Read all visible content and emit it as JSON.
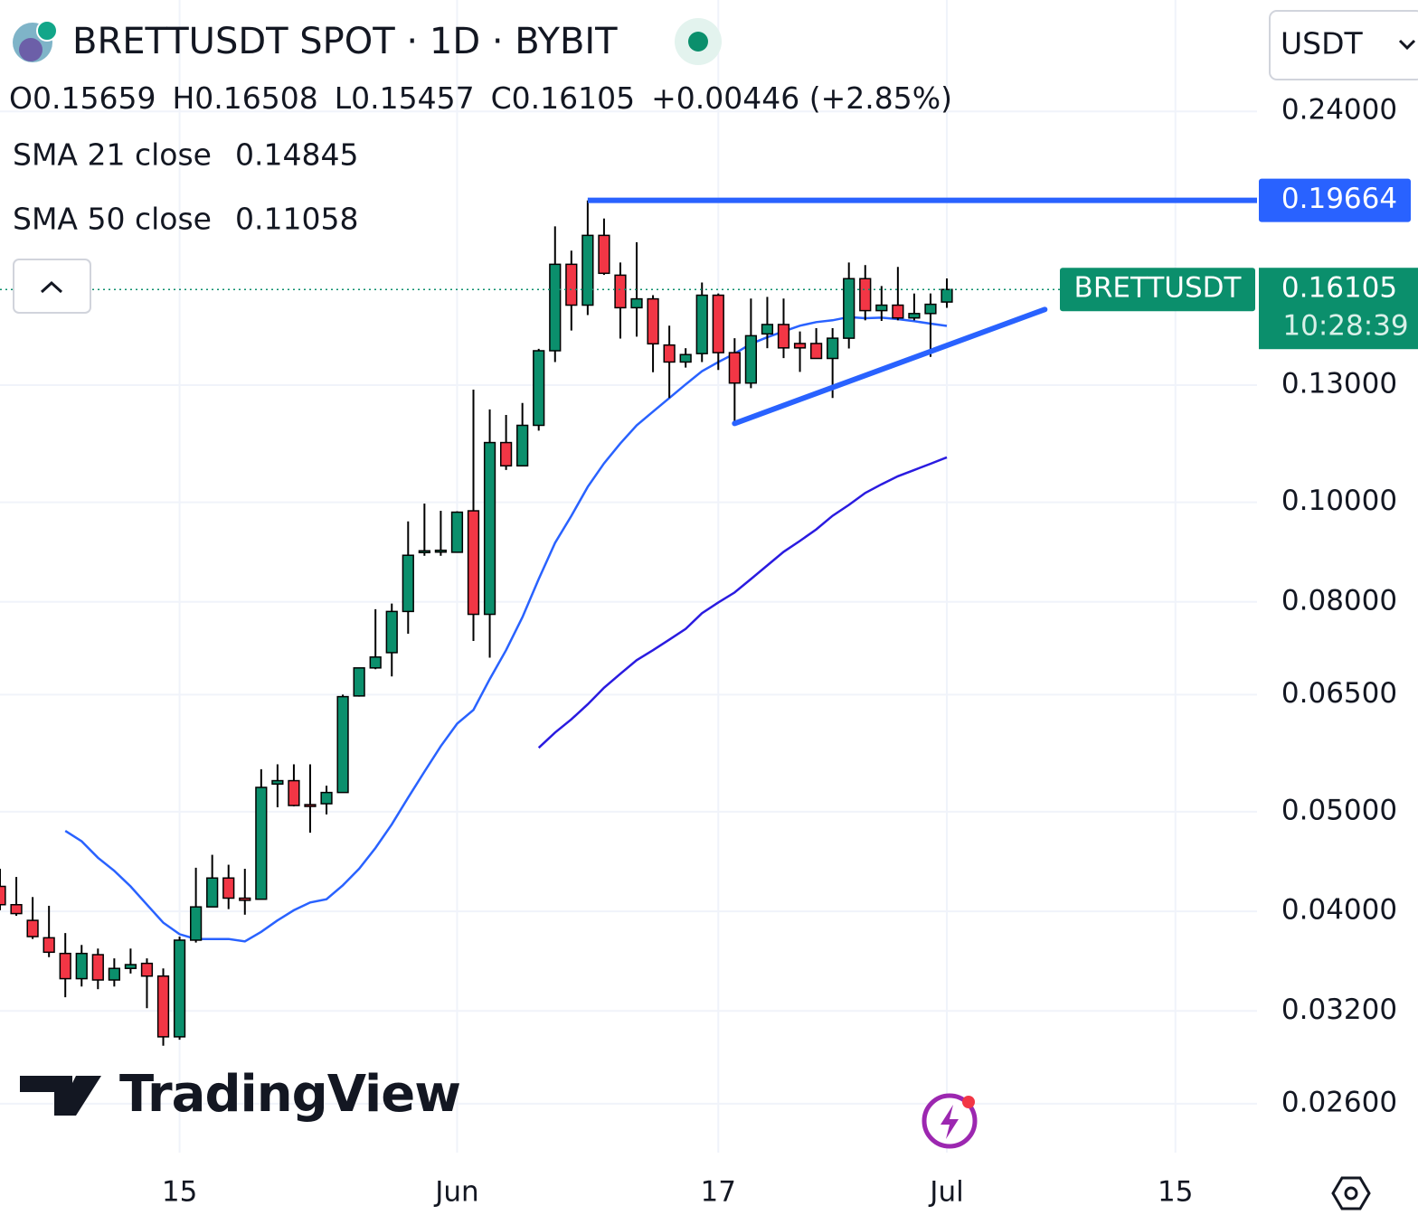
{
  "chart_data": {
    "type": "candlestick",
    "title": "BRETTUSDT SPOT · 1D · BYBIT",
    "ohlc_labels": [
      "O",
      "H",
      "L",
      "C"
    ],
    "change_label": "+0.00446 (+2.85%)",
    "currency": "USDT",
    "symbol_tag": "BRETTUSDT",
    "countdown": "10:28:39",
    "watermark": "TradingView",
    "log_scale": true,
    "grid": true,
    "up_color": "#0b8f6c",
    "down_color": "#f23645",
    "x": [
      "May 4",
      "May 5",
      "May 6",
      "May 7",
      "May 8",
      "May 9",
      "May 10",
      "May 11",
      "May 12",
      "May 13",
      "May 14",
      "May 15",
      "May 16",
      "May 17",
      "May 18",
      "May 19",
      "May 20",
      "May 21",
      "May 22",
      "May 23",
      "May 24",
      "May 25",
      "May 26",
      "May 27",
      "May 28",
      "May 29",
      "May 30",
      "May 31",
      "Jun 1",
      "Jun 2",
      "Jun 3",
      "Jun 4",
      "Jun 5",
      "Jun 6",
      "Jun 7",
      "Jun 8",
      "Jun 9",
      "Jun 10",
      "Jun 11",
      "Jun 12",
      "Jun 13",
      "Jun 14",
      "Jun 15",
      "Jun 16",
      "Jun 17",
      "Jun 18",
      "Jun 19",
      "Jun 20",
      "Jun 21",
      "Jun 22",
      "Jun 23",
      "Jun 24",
      "Jun 25",
      "Jun 26",
      "Jun 27",
      "Jun 28",
      "Jun 29",
      "Jun 30",
      "Jul 1"
    ],
    "open": [
      0.0423,
      0.0406,
      0.0392,
      0.0377,
      0.0364,
      0.0344,
      0.0363,
      0.0343,
      0.0352,
      0.0356,
      0.0346,
      0.0302,
      0.0375,
      0.0404,
      0.0431,
      0.0412,
      0.0411,
      0.0532,
      0.0536,
      0.0508,
      0.0509,
      0.0522,
      0.0648,
      0.069,
      0.0714,
      0.0783,
      0.0894,
      0.0895,
      0.0894,
      0.0981,
      0.0778,
      0.1143,
      0.1085,
      0.1188,
      0.1404,
      0.1704,
      0.1555,
      0.1818,
      0.1663,
      0.1546,
      0.1577,
      0.1422,
      0.1369,
      0.1395,
      0.159,
      0.1398,
      0.1306,
      0.1458,
      0.1489,
      0.1427,
      0.1427,
      0.138,
      0.1444,
      0.165,
      0.1536,
      0.1555,
      0.1511,
      0.1526,
      0.15659
    ],
    "high": [
      0.044,
      0.0432,
      0.0413,
      0.0405,
      0.0381,
      0.0371,
      0.0368,
      0.036,
      0.0368,
      0.036,
      0.0352,
      0.0378,
      0.0441,
      0.0454,
      0.0444,
      0.044,
      0.055,
      0.0556,
      0.0556,
      0.0556,
      0.053,
      0.065,
      0.0688,
      0.0787,
      0.0797,
      0.0958,
      0.0997,
      0.0981,
      0.098,
      0.1287,
      0.1231,
      0.1216,
      0.1249,
      0.141,
      0.1855,
      0.1757,
      0.1966,
      0.1888,
      0.1711,
      0.179,
      0.159,
      0.1485,
      0.1412,
      0.1636,
      0.1596,
      0.1444,
      0.1578,
      0.1584,
      0.1578,
      0.1466,
      0.1477,
      0.1477,
      0.1711,
      0.1701,
      0.1623,
      0.1694,
      0.1596,
      0.1596,
      0.16508
    ],
    "low": [
      0.0401,
      0.0396,
      0.0376,
      0.0361,
      0.033,
      0.0338,
      0.0336,
      0.0338,
      0.0348,
      0.0322,
      0.0296,
      0.03,
      0.0373,
      0.0404,
      0.0402,
      0.0397,
      0.0411,
      0.0505,
      0.0506,
      0.0477,
      0.0497,
      0.0522,
      0.0647,
      0.0688,
      0.0677,
      0.0745,
      0.0887,
      0.0887,
      0.0894,
      0.0733,
      0.0706,
      0.1075,
      0.1085,
      0.1174,
      0.1369,
      0.1469,
      0.1521,
      0.1664,
      0.1443,
      0.1449,
      0.1338,
      0.1263,
      0.1352,
      0.1369,
      0.1345,
      0.1188,
      0.1291,
      0.1412,
      0.1381,
      0.1339,
      0.1379,
      0.1263,
      0.1411,
      0.1503,
      0.1501,
      0.1503,
      0.1503,
      0.1385,
      0.15457
    ],
    "close": [
      0.0406,
      0.0398,
      0.0378,
      0.0365,
      0.0344,
      0.0364,
      0.0343,
      0.0352,
      0.0355,
      0.0346,
      0.0302,
      0.0375,
      0.0404,
      0.0431,
      0.0412,
      0.041,
      0.0528,
      0.0536,
      0.0507,
      0.0506,
      0.0522,
      0.0647,
      0.069,
      0.0707,
      0.0783,
      0.0888,
      0.0897,
      0.0898,
      0.0978,
      0.0778,
      0.1143,
      0.1085,
      0.1188,
      0.1404,
      0.1704,
      0.1555,
      0.1818,
      0.167,
      0.1546,
      0.1577,
      0.1426,
      0.1369,
      0.1392,
      0.159,
      0.1398,
      0.1306,
      0.1452,
      0.1489,
      0.1413,
      0.1413,
      0.138,
      0.1444,
      0.165,
      0.1536,
      0.1555,
      0.1511,
      0.1526,
      0.1558,
      0.16105
    ],
    "series": [
      {
        "name": "SMA 21 close",
        "color": "#2962ff",
        "values": [
          null,
          null,
          null,
          null,
          0.0479,
          0.0468,
          0.0451,
          0.0438,
          0.0423,
          0.0406,
          0.039,
          0.038,
          0.0376,
          0.0376,
          0.0376,
          0.0374,
          0.0382,
          0.0392,
          0.0401,
          0.0408,
          0.0411,
          0.0424,
          0.044,
          0.0461,
          0.0486,
          0.0516,
          0.0547,
          0.0579,
          0.0609,
          0.0628,
          0.0673,
          0.0718,
          0.0773,
          0.0842,
          0.0913,
          0.097,
          0.1035,
          0.1091,
          0.1141,
          0.1188,
          0.1225,
          0.1263,
          0.1302,
          0.1341,
          0.1369,
          0.1395,
          0.1426,
          0.1447,
          0.1466,
          0.1485,
          0.1497,
          0.1503,
          0.1514,
          0.151,
          0.1512,
          0.1507,
          0.15,
          0.1492,
          0.14845
        ]
      },
      {
        "name": "SMA 50 close",
        "color": "#2a1be0",
        "values": [
          null,
          null,
          null,
          null,
          null,
          null,
          null,
          null,
          null,
          null,
          null,
          null,
          null,
          null,
          null,
          null,
          null,
          null,
          null,
          null,
          null,
          null,
          null,
          null,
          null,
          null,
          null,
          null,
          null,
          null,
          null,
          null,
          null,
          0.0577,
          0.0597,
          0.0615,
          0.0636,
          0.066,
          0.0681,
          0.0702,
          0.0718,
          0.0735,
          0.0753,
          0.078,
          0.0799,
          0.0817,
          0.0842,
          0.0868,
          0.0895,
          0.0917,
          0.0941,
          0.097,
          0.0994,
          0.1021,
          0.1041,
          0.106,
          0.1075,
          0.109,
          0.11058
        ]
      }
    ],
    "annotations": [
      {
        "type": "hline",
        "x": "Jun 9",
        "value": 0.19664,
        "color": "#2962ff"
      },
      {
        "type": "trendline",
        "x": [
          "Jun 18",
          "Jul 7"
        ],
        "values": [
          0.1193,
          0.154
        ],
        "color": "#2962ff"
      }
    ],
    "xlim": [
      "May 4",
      "Jul 20"
    ],
    "ylim": [
      0.0233,
      0.308
    ],
    "xticks": [
      {
        "value": "May 15",
        "label": "15"
      },
      {
        "value": "Jun 1",
        "label": "Jun"
      },
      {
        "value": "Jun 17",
        "label": "17"
      },
      {
        "value": "Jul 1",
        "label": "Jul"
      },
      {
        "value": "Jul 15",
        "label": "15"
      }
    ],
    "yticks": [
      {
        "value": 0.24,
        "label": "0.24000"
      },
      {
        "value": 0.13,
        "label": "0.13000"
      },
      {
        "value": 0.1,
        "label": "0.10000"
      },
      {
        "value": 0.08,
        "label": "0.08000"
      },
      {
        "value": 0.065,
        "label": "0.06500"
      },
      {
        "value": 0.05,
        "label": "0.05000"
      },
      {
        "value": 0.04,
        "label": "0.04000"
      },
      {
        "value": 0.032,
        "label": "0.03200"
      },
      {
        "value": 0.026,
        "label": "0.02600"
      }
    ]
  }
}
